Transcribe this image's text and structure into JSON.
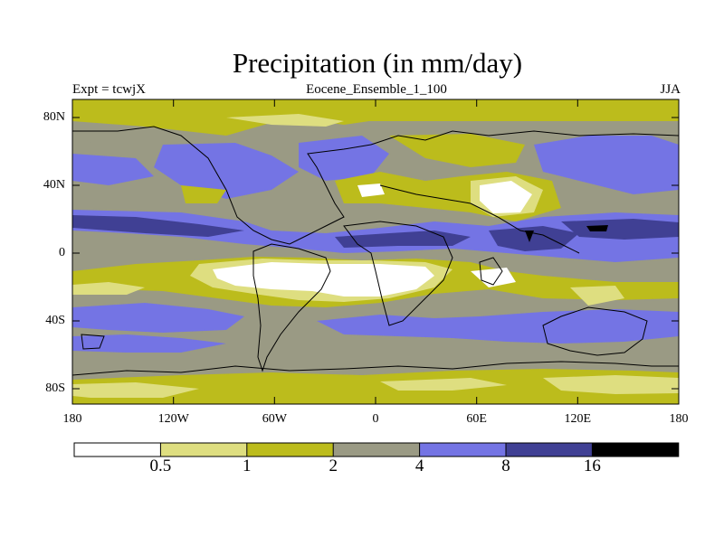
{
  "figure": {
    "title": "Precipitation (in mm/day)",
    "left_label": "Expt = tcwjX",
    "center_label": "Eocene_Ensemble_1_100",
    "right_label": "JJA"
  },
  "map": {
    "projection": "cylindrical equidistant",
    "lon_range": [
      -180,
      180
    ],
    "lat_range": [
      -90,
      90
    ],
    "y_ticks": [
      "80N",
      "40N",
      "0",
      "40S",
      "80S"
    ],
    "x_ticks": [
      "180",
      "120W",
      "60W",
      "0",
      "60E",
      "120E",
      "180"
    ]
  },
  "colorbar": {
    "boundaries": [
      "0.5",
      "1",
      "2",
      "4",
      "8",
      "16"
    ],
    "colors": [
      "#ffffff",
      "#dede80",
      "#bcbc1c",
      "#9a9a84",
      "#7474e4",
      "#404094",
      "#000000"
    ]
  },
  "chart_data": {
    "type": "heatmap",
    "title": "Precipitation (in mm/day)",
    "subtitle": "Eocene_Ensemble_1_100",
    "season": "JJA",
    "experiment": "Expt = tcwjX",
    "units": "mm/day",
    "levels": [
      0.5,
      1,
      2,
      4,
      8,
      16
    ],
    "x_range": [
      -180,
      180
    ],
    "y_range": [
      -90,
      90
    ]
  }
}
